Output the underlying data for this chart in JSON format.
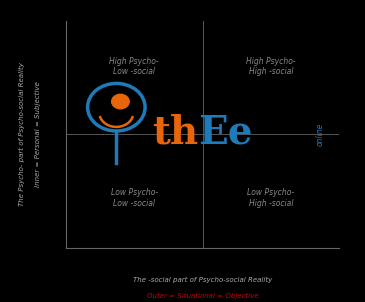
{
  "bg_color": "#000000",
  "plot_bg_color": "#000000",
  "axis_color": "#555555",
  "quadrant_labels": {
    "top_left": "High Psycho-\nLow -social",
    "top_right": "High Psycho-\nHigh -social",
    "bottom_left": "Low Psycho-\nLow -social",
    "bottom_right": "Low Psycho-\nHigh -social"
  },
  "quadrant_label_color": "#888888",
  "xlabel_line1": "The -social part of Psycho-social Reality",
  "xlabel_line2": "Outer = Situational = Objective",
  "ylabel_line1": "The Psycho- part of Psycho-social Reality",
  "ylabel_line2": "Inner = Personal = Subjective",
  "axis_label_base_color": "#aaaaaa",
  "axis_label_highlight_color": "#cc0000",
  "logo_thee_color_orange": "#e8650a",
  "logo_thee_color_blue": "#1e7ab8",
  "logo_online_color": "#1e7ab8",
  "figsize": [
    3.65,
    3.02
  ],
  "dpi": 100
}
